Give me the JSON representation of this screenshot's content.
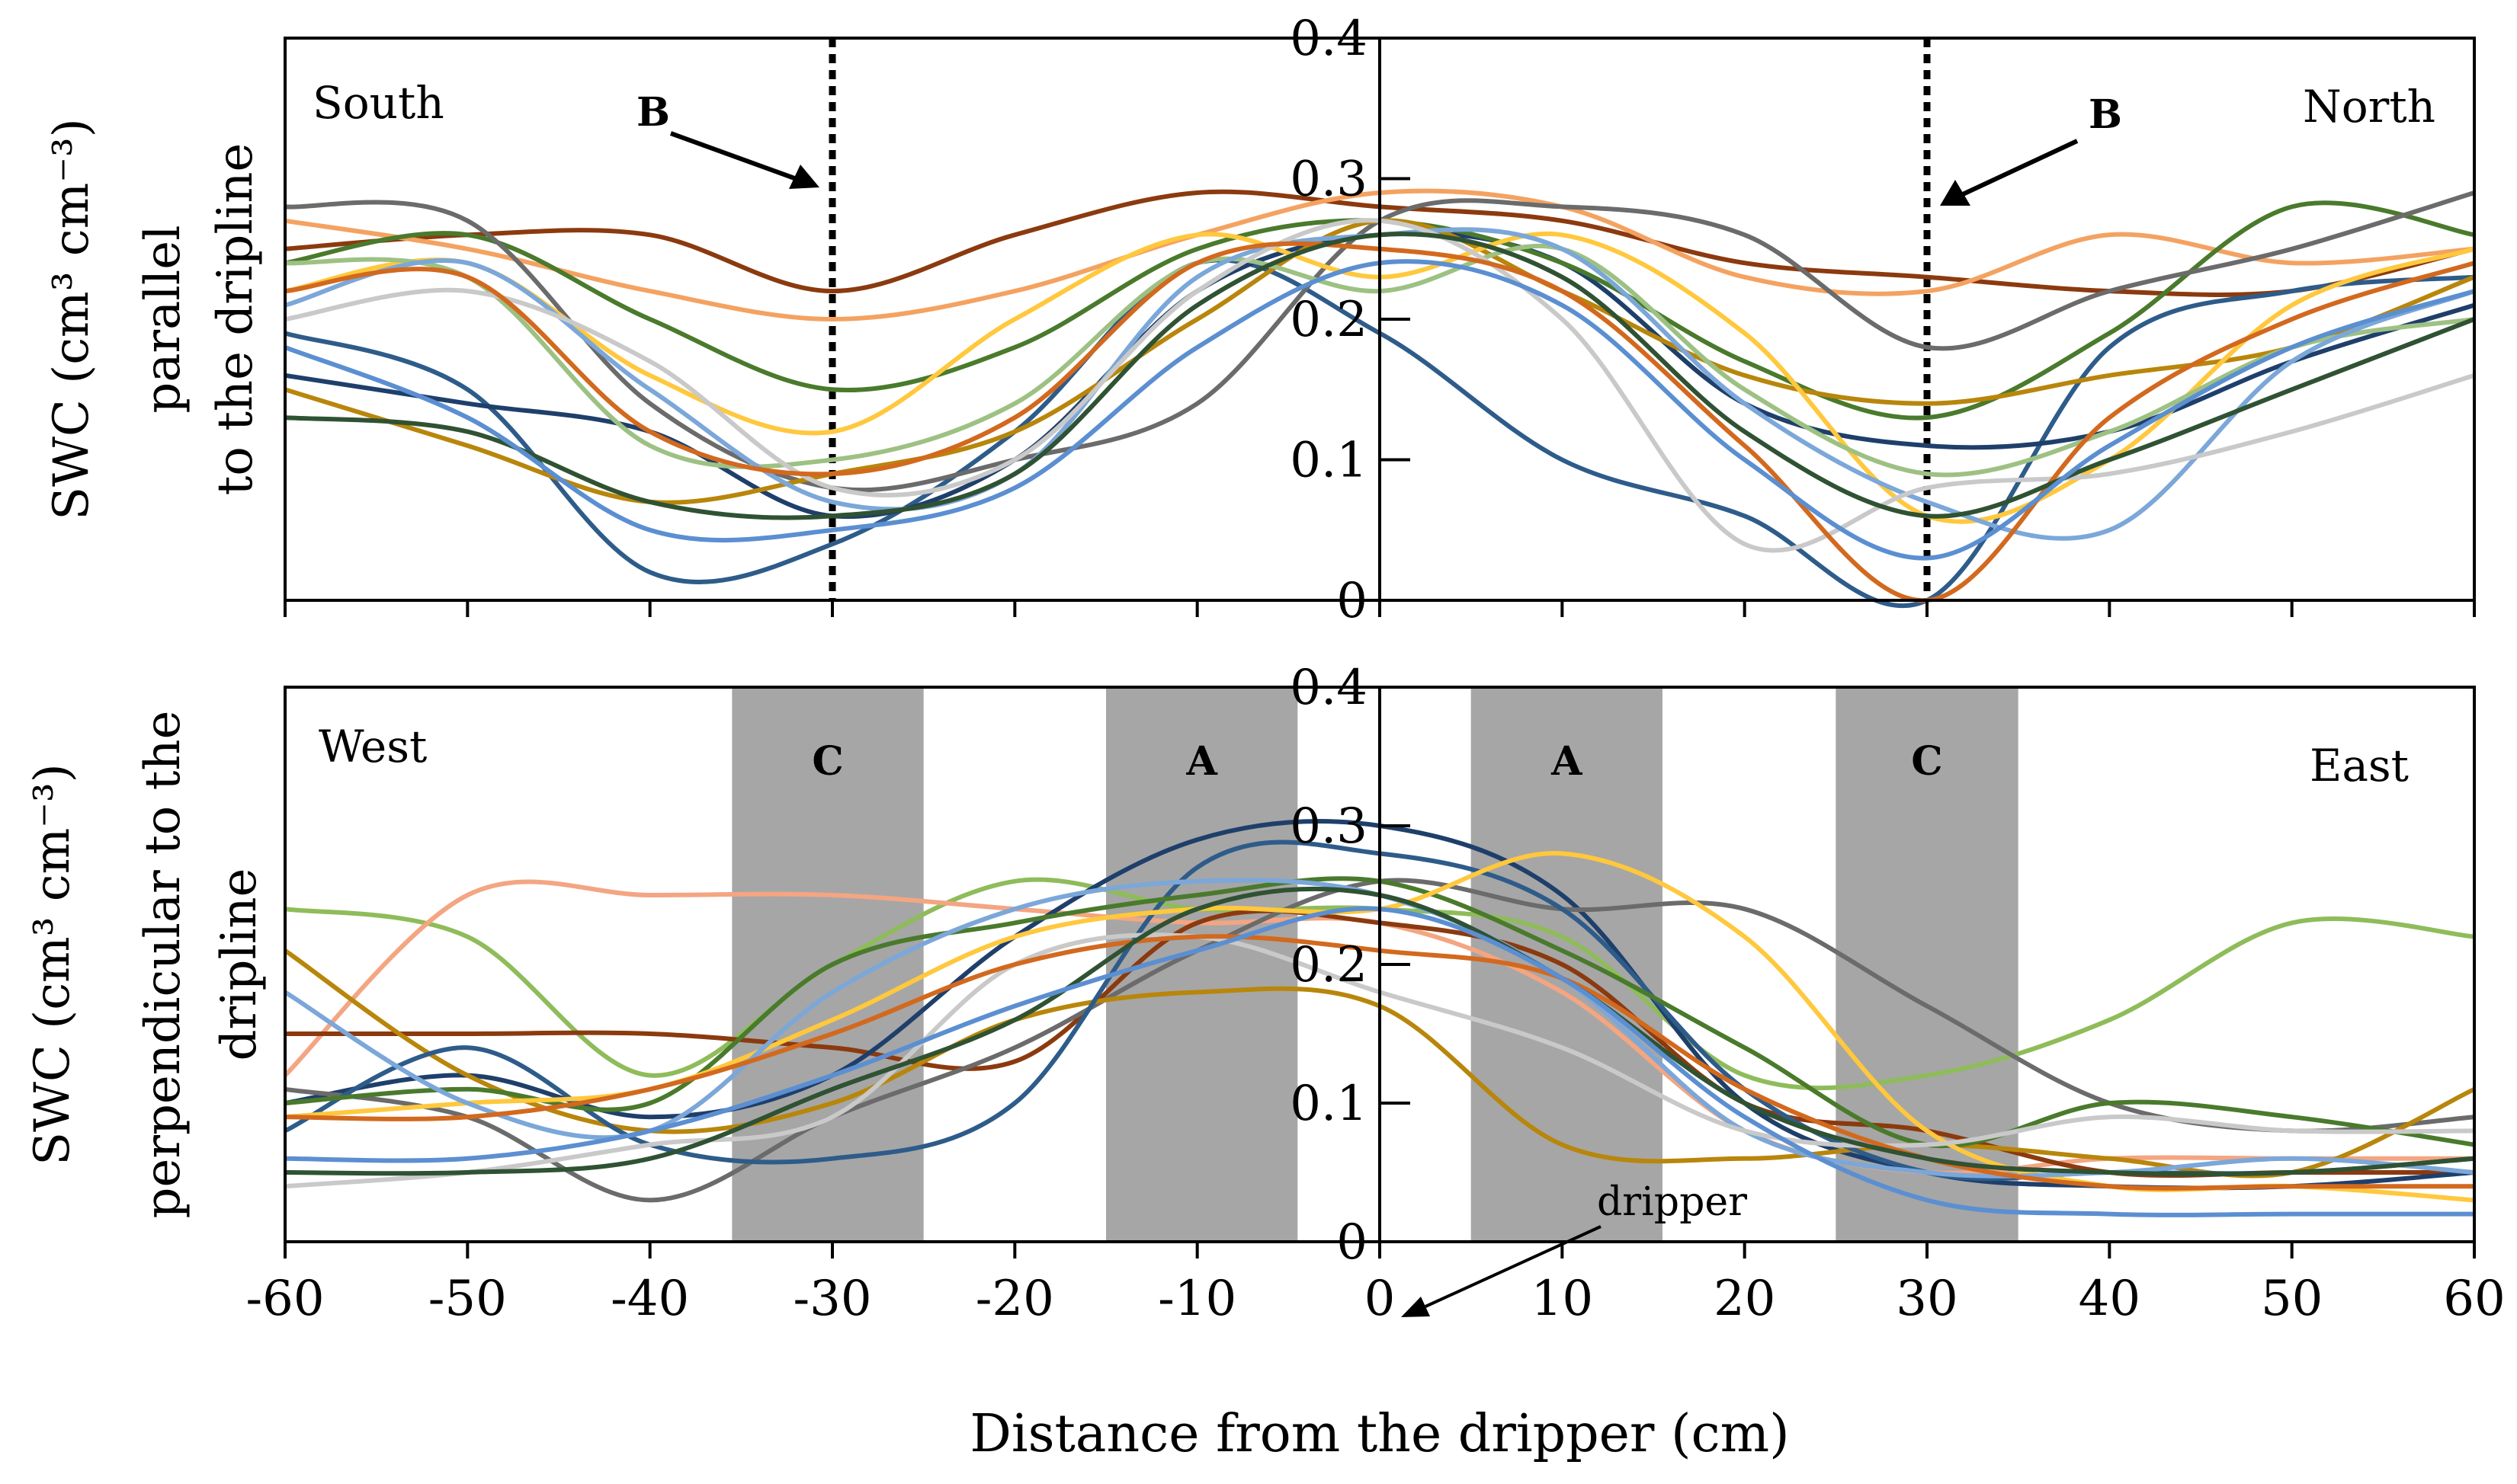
{
  "chart_data": [
    {
      "type": "line",
      "panel": "top",
      "ylabel": [
        "SWC (cm³ cm⁻³)",
        "parallel",
        "to the dripline"
      ],
      "ylim": [
        0,
        0.4
      ],
      "yticks": [
        "0",
        "0.1",
        "0.2",
        "0.3",
        "0.4"
      ],
      "xlim": [
        -60,
        60
      ],
      "corner_left": "South",
      "corner_right": "North",
      "annotations": [
        {
          "text": "B",
          "at_x": -30
        },
        {
          "text": "B",
          "at_x": 30
        }
      ],
      "reference_lines_x": [
        -30,
        30
      ],
      "x": [
        -60,
        -50,
        -40,
        -30,
        -20,
        -10,
        0,
        10,
        20,
        30,
        40,
        50,
        60
      ],
      "series": [
        {
          "color": "#8B3A0F",
          "values": [
            0.25,
            0.26,
            0.26,
            0.22,
            0.26,
            0.29,
            0.28,
            0.27,
            0.24,
            0.23,
            0.22,
            0.22,
            0.25
          ]
        },
        {
          "color": "#F4A261",
          "values": [
            0.27,
            0.25,
            0.22,
            0.2,
            0.22,
            0.26,
            0.29,
            0.28,
            0.23,
            0.22,
            0.26,
            0.24,
            0.25
          ]
        },
        {
          "color": "#2E5C8A",
          "values": [
            0.19,
            0.15,
            0.02,
            0.04,
            0.12,
            0.24,
            0.19,
            0.1,
            0.06,
            0.0,
            0.18,
            0.22,
            0.23
          ]
        },
        {
          "color": "#1F3F6B",
          "values": [
            0.16,
            0.14,
            0.12,
            0.06,
            0.1,
            0.22,
            0.26,
            0.24,
            0.14,
            0.11,
            0.12,
            0.17,
            0.21
          ]
        },
        {
          "color": "#4A7A2C",
          "values": [
            0.24,
            0.26,
            0.2,
            0.15,
            0.18,
            0.25,
            0.27,
            0.24,
            0.17,
            0.13,
            0.19,
            0.28,
            0.26
          ]
        },
        {
          "color": "#6B6B6B",
          "values": [
            0.28,
            0.27,
            0.14,
            0.08,
            0.1,
            0.14,
            0.27,
            0.28,
            0.26,
            0.18,
            0.22,
            0.25,
            0.29
          ]
        },
        {
          "color": "#B8860B",
          "values": [
            0.15,
            0.11,
            0.07,
            0.09,
            0.12,
            0.2,
            0.27,
            0.22,
            0.16,
            0.14,
            0.16,
            0.18,
            0.23
          ]
        },
        {
          "color": "#FFC83D",
          "values": [
            0.22,
            0.24,
            0.16,
            0.12,
            0.2,
            0.26,
            0.23,
            0.26,
            0.19,
            0.06,
            0.1,
            0.21,
            0.25
          ]
        },
        {
          "color": "#9DC183",
          "values": [
            0.24,
            0.23,
            0.11,
            0.1,
            0.14,
            0.24,
            0.22,
            0.25,
            0.15,
            0.09,
            0.12,
            0.18,
            0.2
          ]
        },
        {
          "color": "#7BA7D9",
          "values": [
            0.21,
            0.24,
            0.15,
            0.07,
            0.09,
            0.23,
            0.26,
            0.25,
            0.14,
            0.07,
            0.05,
            0.17,
            0.22
          ]
        },
        {
          "color": "#C9C9C9",
          "values": [
            0.2,
            0.22,
            0.17,
            0.08,
            0.1,
            0.22,
            0.27,
            0.2,
            0.04,
            0.08,
            0.09,
            0.12,
            0.16
          ]
        },
        {
          "color": "#D2691E",
          "values": [
            0.22,
            0.23,
            0.12,
            0.09,
            0.13,
            0.24,
            0.25,
            0.22,
            0.11,
            0.0,
            0.13,
            0.2,
            0.24
          ]
        },
        {
          "color": "#2F5233",
          "values": [
            0.13,
            0.12,
            0.07,
            0.06,
            0.09,
            0.21,
            0.26,
            0.23,
            0.12,
            0.06,
            0.1,
            0.15,
            0.2
          ]
        },
        {
          "color": "#5B8FD1",
          "values": [
            0.18,
            0.13,
            0.05,
            0.05,
            0.08,
            0.18,
            0.24,
            0.21,
            0.1,
            0.03,
            0.11,
            0.18,
            0.22
          ]
        }
      ]
    },
    {
      "type": "line",
      "panel": "bottom",
      "ylabel": [
        "SWC (cm³ cm⁻³)",
        "perpendicular  to the",
        "dripline"
      ],
      "ylim": [
        0,
        0.4
      ],
      "yticks": [
        "0",
        "0.1",
        "0.2",
        "0.3",
        "0.4"
      ],
      "xlim": [
        -60,
        60
      ],
      "xticks": [
        "-60",
        "-50",
        "-40",
        "-30",
        "-20",
        "-10",
        "0",
        "10",
        "20",
        "30",
        "40",
        "50",
        "60"
      ],
      "xlabel": "Distance from the dripper (cm)",
      "corner_left": "West",
      "corner_right": "East",
      "shaded_bands": [
        {
          "label": "C",
          "x0": -35.5,
          "x1": -25
        },
        {
          "label": "A",
          "x0": -15,
          "x1": -4.5
        },
        {
          "label": "A",
          "x0": 5,
          "x1": 15.5
        },
        {
          "label": "C",
          "x0": 25,
          "x1": 35
        }
      ],
      "annotation": {
        "text": "dripper",
        "at_x": 0
      },
      "x": [
        -60,
        -50,
        -40,
        -30,
        -20,
        -10,
        0,
        10,
        20,
        30,
        40,
        50,
        60
      ],
      "series": [
        {
          "color": "#8FBC5A",
          "values": [
            0.24,
            0.22,
            0.12,
            0.2,
            0.26,
            0.24,
            0.24,
            0.22,
            0.12,
            0.12,
            0.16,
            0.23,
            0.22
          ]
        },
        {
          "color": "#F4A582",
          "values": [
            0.12,
            0.25,
            0.25,
            0.25,
            0.24,
            0.23,
            0.23,
            0.18,
            0.08,
            0.05,
            0.06,
            0.06,
            0.06
          ]
        },
        {
          "color": "#8B3A0F",
          "values": [
            0.15,
            0.15,
            0.15,
            0.14,
            0.13,
            0.23,
            0.23,
            0.2,
            0.1,
            0.08,
            0.05,
            0.05,
            0.05
          ]
        },
        {
          "color": "#1F3F6B",
          "values": [
            0.1,
            0.12,
            0.09,
            0.12,
            0.22,
            0.29,
            0.3,
            0.25,
            0.1,
            0.05,
            0.04,
            0.04,
            0.05
          ]
        },
        {
          "color": "#6B6B6B",
          "values": [
            0.11,
            0.09,
            0.03,
            0.09,
            0.14,
            0.21,
            0.26,
            0.24,
            0.24,
            0.17,
            0.1,
            0.08,
            0.09
          ]
        },
        {
          "color": "#B8860B",
          "values": [
            0.21,
            0.12,
            0.08,
            0.1,
            0.16,
            0.18,
            0.17,
            0.07,
            0.06,
            0.07,
            0.06,
            0.05,
            0.11
          ]
        },
        {
          "color": "#2E5C8A",
          "values": [
            0.08,
            0.14,
            0.07,
            0.06,
            0.1,
            0.27,
            0.28,
            0.24,
            0.11,
            0.05,
            0.05,
            0.05,
            0.06
          ]
        },
        {
          "color": "#4A7A2C",
          "values": [
            0.1,
            0.11,
            0.1,
            0.2,
            0.23,
            0.25,
            0.26,
            0.21,
            0.14,
            0.07,
            0.1,
            0.09,
            0.07
          ]
        },
        {
          "color": "#FFC83D",
          "values": [
            0.09,
            0.1,
            0.11,
            0.16,
            0.22,
            0.24,
            0.24,
            0.28,
            0.22,
            0.08,
            0.04,
            0.04,
            0.03
          ]
        },
        {
          "color": "#7BA7D9",
          "values": [
            0.18,
            0.1,
            0.08,
            0.18,
            0.24,
            0.26,
            0.25,
            0.19,
            0.08,
            0.05,
            0.05,
            0.06,
            0.05
          ]
        },
        {
          "color": "#C9C9C9",
          "values": [
            0.04,
            0.05,
            0.07,
            0.09,
            0.2,
            0.22,
            0.18,
            0.14,
            0.08,
            0.07,
            0.09,
            0.08,
            0.08
          ]
        },
        {
          "color": "#D2691E",
          "values": [
            0.09,
            0.09,
            0.11,
            0.15,
            0.2,
            0.22,
            0.21,
            0.19,
            0.11,
            0.06,
            0.04,
            0.04,
            0.04
          ]
        },
        {
          "color": "#2F5233",
          "values": [
            0.05,
            0.05,
            0.06,
            0.11,
            0.16,
            0.24,
            0.25,
            0.19,
            0.1,
            0.06,
            0.05,
            0.05,
            0.06
          ]
        },
        {
          "color": "#5B8FD1",
          "values": [
            0.06,
            0.06,
            0.08,
            0.12,
            0.17,
            0.21,
            0.24,
            0.19,
            0.09,
            0.03,
            0.02,
            0.02,
            0.02
          ]
        }
      ]
    }
  ]
}
